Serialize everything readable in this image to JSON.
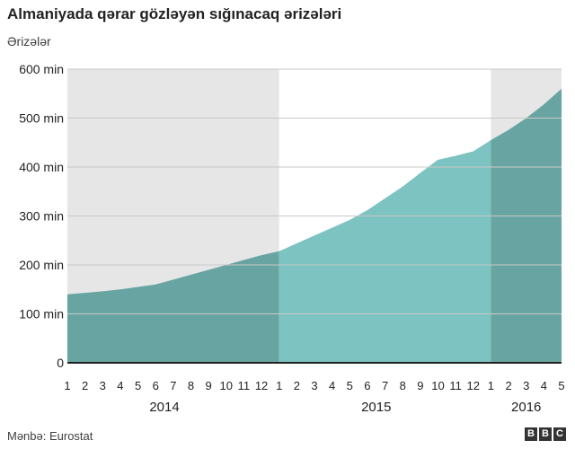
{
  "title": "Almaniyada qərar gözləyən sığınacaq ərizələri",
  "subtitle": "Ərizələr",
  "source": "Mənbə: Eurostat",
  "logo": [
    "B",
    "B",
    "C"
  ],
  "colors": {
    "year_band_2014_2016": "#e6e6e6",
    "band_2015": "#ffffff",
    "area_2014_2016": "#68a5a2",
    "area_2015": "#7cc3c1",
    "gridline": "#c8c8c8",
    "axis": "#222222",
    "text": "#222222"
  },
  "chart_data": {
    "type": "area",
    "title": "Almaniyada qərar gözləyən sığınacaq ərizələri",
    "ylabel": "Ərizələr",
    "xlabel": "",
    "ylim": [
      0,
      600
    ],
    "y_ticks": [
      0,
      100,
      200,
      300,
      400,
      500,
      600
    ],
    "y_tick_labels": [
      "0",
      "100 min",
      "200 min",
      "300 min",
      "400 min",
      "500 min",
      "600 min"
    ],
    "x": [
      "1",
      "2",
      "3",
      "4",
      "5",
      "6",
      "7",
      "8",
      "9",
      "10",
      "11",
      "12",
      "1",
      "2",
      "3",
      "4",
      "5",
      "6",
      "7",
      "8",
      "9",
      "10",
      "11",
      "12",
      "1",
      "2",
      "3",
      "4",
      "5"
    ],
    "years": [
      {
        "label": "2014",
        "start": 0,
        "end": 11
      },
      {
        "label": "2015",
        "start": 12,
        "end": 23
      },
      {
        "label": "2016",
        "start": 24,
        "end": 28
      }
    ],
    "values": [
      140,
      143,
      146,
      150,
      155,
      160,
      170,
      180,
      190,
      200,
      210,
      220,
      228,
      244,
      260,
      276,
      292,
      312,
      336,
      360,
      388,
      415,
      423,
      432,
      455,
      476,
      500,
      528,
      560
    ],
    "grid": true,
    "unit": "min"
  }
}
